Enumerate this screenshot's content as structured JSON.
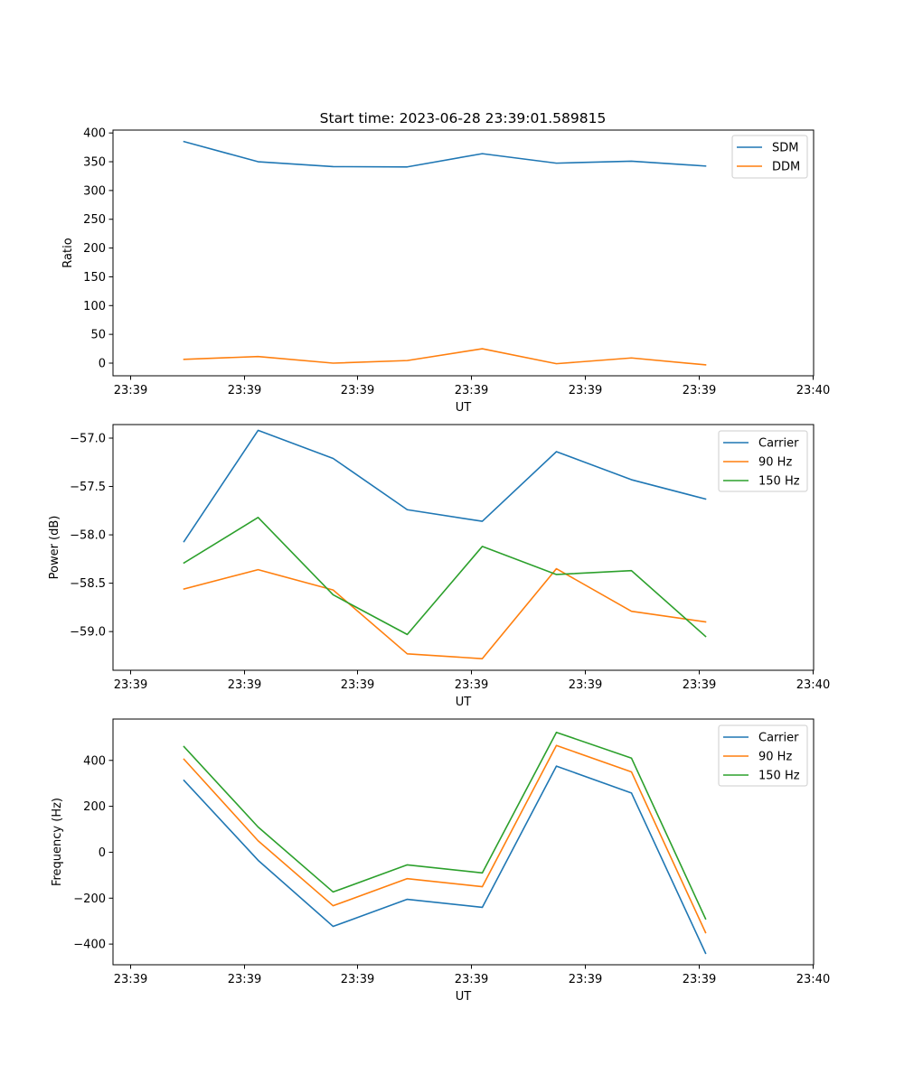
{
  "figure": {
    "title": "Start time: 2023-06-28 23:39:01.589815"
  },
  "colors": {
    "series1": "#1f77b4",
    "series2": "#ff7f0e",
    "series3": "#2ca02c",
    "axes": "#000000",
    "legend_border": "#cccccc"
  },
  "chart_data": [
    {
      "type": "line",
      "xlabel": "UT",
      "ylabel": "Ratio",
      "x_tick_labels": [
        "23:39",
        "23:39",
        "23:39",
        "23:39",
        "23:39",
        "23:39",
        "23:40"
      ],
      "y_ticks": [
        0,
        50,
        100,
        150,
        200,
        250,
        300,
        350,
        400
      ],
      "ylim": [
        -22,
        405
      ],
      "grid": false,
      "legend_position": "top-right",
      "series": [
        {
          "name": "SDM",
          "color": "#1f77b4",
          "values": [
            385,
            350,
            341.5,
            341,
            364,
            347.5,
            351,
            342.5
          ]
        },
        {
          "name": "DDM",
          "color": "#ff7f0e",
          "values": [
            6.5,
            11.5,
            0,
            4.5,
            25,
            -1,
            9,
            -3
          ]
        }
      ]
    },
    {
      "type": "line",
      "xlabel": "UT",
      "ylabel": "Power (dB)",
      "x_tick_labels": [
        "23:39",
        "23:39",
        "23:39",
        "23:39",
        "23:39",
        "23:39",
        "23:40"
      ],
      "y_ticks": [
        -57.0,
        -57.5,
        -58.0,
        -58.5,
        -59.0
      ],
      "y_tick_labels": [
        "−57.0",
        "−57.5",
        "−58.0",
        "−58.5",
        "−59.0"
      ],
      "ylim": [
        -59.4,
        -56.86
      ],
      "grid": false,
      "legend_position": "top-right",
      "series": [
        {
          "name": "Carrier",
          "color": "#1f77b4",
          "values": [
            -58.07,
            -56.92,
            -57.21,
            -57.74,
            -57.86,
            -57.14,
            -57.43,
            -57.63
          ]
        },
        {
          "name": "90 Hz",
          "color": "#ff7f0e",
          "values": [
            -58.56,
            -58.36,
            -58.57,
            -59.23,
            -59.28,
            -58.35,
            -58.79,
            -58.9
          ]
        },
        {
          "name": "150 Hz",
          "color": "#2ca02c",
          "values": [
            -58.29,
            -57.82,
            -58.62,
            -59.03,
            -58.12,
            -58.41,
            -58.37,
            -59.05
          ]
        }
      ]
    },
    {
      "type": "line",
      "xlabel": "UT",
      "ylabel": "Frequency (Hz)",
      "x_tick_labels": [
        "23:39",
        "23:39",
        "23:39",
        "23:39",
        "23:39",
        "23:39",
        "23:40"
      ],
      "y_ticks": [
        -400,
        -200,
        0,
        200,
        400
      ],
      "y_tick_labels": [
        "−400",
        "−200",
        "0",
        "200",
        "400"
      ],
      "ylim": [
        -490,
        580
      ],
      "grid": false,
      "legend_position": "top-right",
      "series": [
        {
          "name": "Carrier",
          "color": "#1f77b4",
          "values": [
            313,
            -35,
            -323,
            -205,
            -240,
            375,
            258,
            -440
          ]
        },
        {
          "name": "90 Hz",
          "color": "#ff7f0e",
          "values": [
            405,
            50,
            -233,
            -115,
            -150,
            465,
            350,
            -350
          ]
        },
        {
          "name": "150 Hz",
          "color": "#2ca02c",
          "values": [
            460,
            110,
            -173,
            -55,
            -90,
            522,
            410,
            -290
          ]
        }
      ]
    }
  ]
}
